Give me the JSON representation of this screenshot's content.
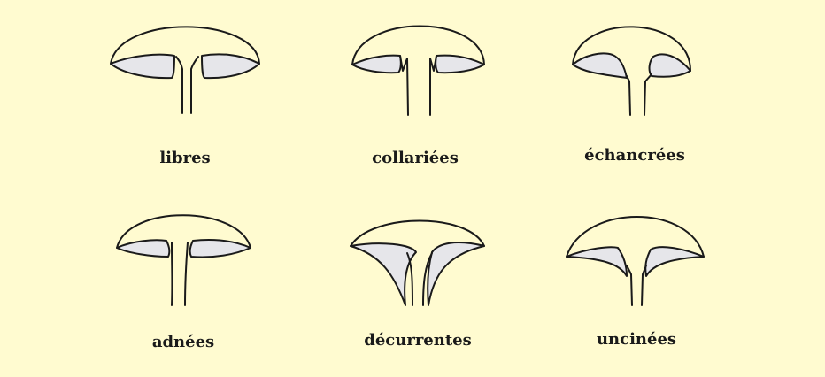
{
  "colors": {
    "background": "#fffbd0",
    "outline": "#1a1a1a",
    "gill_fill": "#e6e6ea"
  },
  "figures": [
    {
      "id": "libres",
      "label": "libres"
    },
    {
      "id": "collariees",
      "label": "collariées"
    },
    {
      "id": "echancrees",
      "label": "échancrées"
    },
    {
      "id": "adnees",
      "label": "adnées"
    },
    {
      "id": "decurrentes",
      "label": "décurrentes"
    },
    {
      "id": "uncinees",
      "label": "uncinées"
    }
  ]
}
